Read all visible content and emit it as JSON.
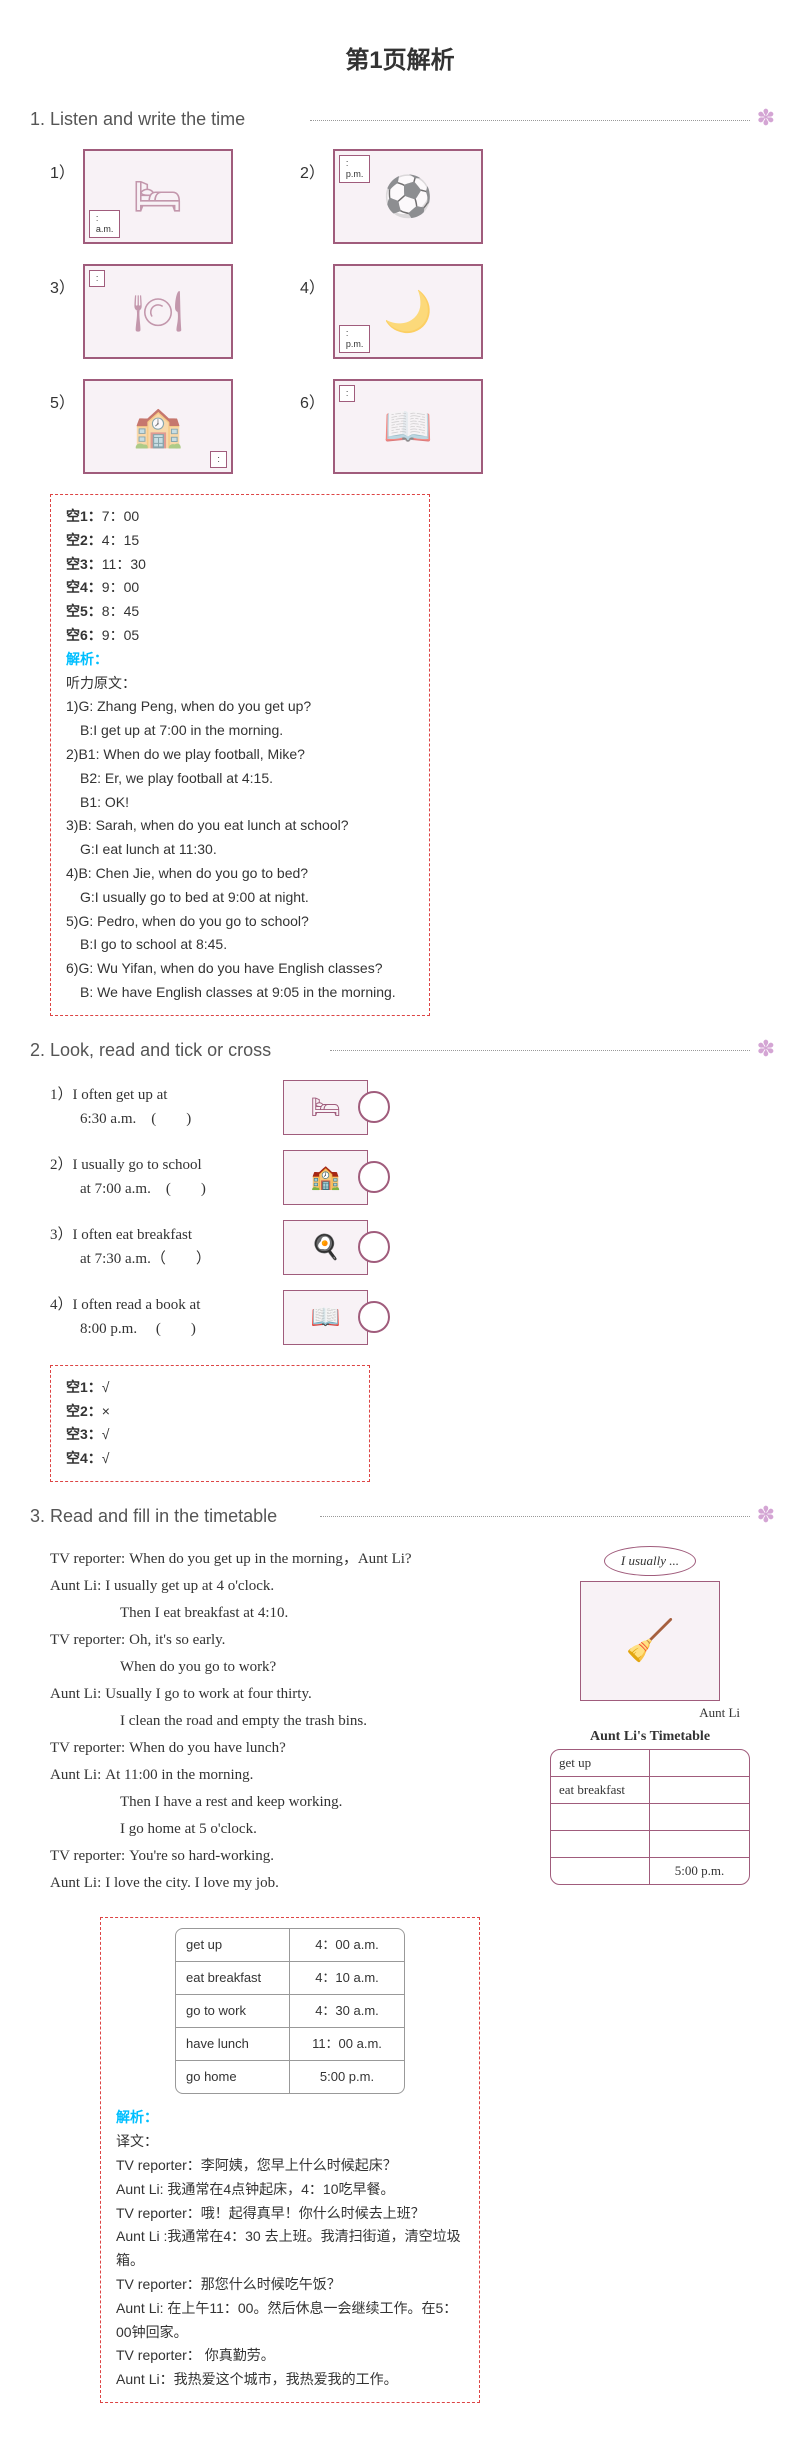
{
  "page_title": "第1页解析",
  "section1": {
    "title": "1.  Listen and write the time",
    "items": [
      {
        "num": "1）",
        "tag_pos": "bl",
        "tag": ":\na.m.",
        "glyph": "🛏"
      },
      {
        "num": "2）",
        "tag_pos": "tl",
        "tag": ":\np.m.",
        "glyph": "⚽"
      },
      {
        "num": "3）",
        "tag_pos": "tl",
        "tag": ":",
        "glyph": "🍽"
      },
      {
        "num": "4）",
        "tag_pos": "bl",
        "tag": ":\np.m.",
        "glyph": "🌙"
      },
      {
        "num": "5）",
        "tag_pos": "br",
        "tag": ":",
        "glyph": "🏫"
      },
      {
        "num": "6）",
        "tag_pos": "tl",
        "tag": ":",
        "glyph": "📖"
      }
    ],
    "answers": [
      {
        "k": "空1：",
        "v": "7：00"
      },
      {
        "k": "空2：",
        "v": "4：15"
      },
      {
        "k": "空3：",
        "v": "11：30"
      },
      {
        "k": "空4：",
        "v": "9：00"
      },
      {
        "k": "空5：",
        "v": "8：45"
      },
      {
        "k": "空6：",
        "v": "9：05"
      }
    ],
    "analysis_label": "解析：",
    "script_title": "听力原文：",
    "script": [
      "1)G: Zhang Peng, when do you get up?",
      "   B:I get up at 7:00 in the morning.",
      "2)B1: When do we play football, Mike?",
      "   B2: Er, we play football at 4:15.",
      "   B1: OK!",
      "3)B: Sarah, when do you eat lunch at school?",
      "   G:I eat lunch at 11:30.",
      "4)B: Chen Jie, when do you go to bed?",
      "   G:I usually go to bed at 9:00 at night.",
      "5)G: Pedro, when do you go to school?",
      "   B:I go to school at 8:45.",
      "6)G: Wu Yifan, when do you have English classes?",
      "   B: We have English classes at 9:05 in the morning."
    ]
  },
  "section2": {
    "title": "2.  Look, read and tick or cross",
    "items": [
      {
        "num": "1）",
        "l1": "I often get up at",
        "l2": "6:30 a.m.　(　　)",
        "glyph": "🛏"
      },
      {
        "num": "2）",
        "l1": "I usually go to school",
        "l2": "at 7:00 a.m.　(　　)",
        "glyph": "🏫"
      },
      {
        "num": "3）",
        "l1": "I often eat breakfast",
        "l2": "at 7:30 a.m.（　　）",
        "glyph": "🍳"
      },
      {
        "num": "4）",
        "l1": "I often read a book at",
        "l2": "8:00 p.m.　 (　　)",
        "glyph": "📖"
      }
    ],
    "answers": [
      {
        "k": "空1：",
        "v": "√"
      },
      {
        "k": "空2：",
        "v": "×"
      },
      {
        "k": "空3：",
        "v": "√"
      },
      {
        "k": "空4：",
        "v": "√"
      }
    ]
  },
  "section3": {
    "title": "3.  Read and fill in the timetable",
    "dialogue": [
      {
        "s": "TV reporter:",
        "t": "When do you get up in the morning，Aunt Li?"
      },
      {
        "s": "Aunt Li:",
        "t": "I usually get up at 4 o'clock."
      },
      {
        "s": "",
        "t": "Then I eat breakfast at 4:10."
      },
      {
        "s": "TV reporter:",
        "t": "Oh, it's so early."
      },
      {
        "s": "",
        "t": "When do you go to work?"
      },
      {
        "s": "Aunt Li:",
        "t": "Usually I go to work at four thirty."
      },
      {
        "s": "",
        "t": "I clean the road and empty the trash bins."
      },
      {
        "s": "TV reporter:",
        "t": "When do you have lunch?"
      },
      {
        "s": "Aunt Li:",
        "t": "At 11:00 in the morning."
      },
      {
        "s": "",
        "t": "Then I have a rest and keep working."
      },
      {
        "s": "",
        "t": "I go home at 5 o'clock."
      },
      {
        "s": "TV reporter:",
        "t": "You're so hard-working."
      },
      {
        "s": "Aunt Li:",
        "t": "I love the city. I love my job."
      }
    ],
    "bubble": "I usually ...",
    "aunt_label": "Aunt  Li",
    "timetable_title": "Aunt  Li's   Timetable",
    "timetable_blank": [
      {
        "c1": "get  up",
        "c2": ""
      },
      {
        "c1": "eat  breakfast",
        "c2": ""
      },
      {
        "c1": "",
        "c2": ""
      },
      {
        "c1": "",
        "c2": ""
      },
      {
        "c1": "",
        "c2": "5:00  p.m."
      }
    ],
    "ans_timetable": [
      {
        "c1": "get  up",
        "c2": "4：00 a.m."
      },
      {
        "c1": "eat  breakfast",
        "c2": "4：10 a.m."
      },
      {
        "c1": "go to work",
        "c2": "4：30 a.m."
      },
      {
        "c1": "have lunch",
        "c2": "11：00 a.m."
      },
      {
        "c1": "go home",
        "c2": "5:00  p.m."
      }
    ],
    "analysis_label": "解析：",
    "trans_title": "译文：",
    "translation": [
      "TV reporter：李阿姨，您早上什么时候起床？",
      "Aunt Li:  我通常在4点钟起床，4：10吃早餐。",
      "TV reporter：哦！起得真早！你什么时候去上班？",
      "Aunt Li :我通常在4：30 去上班。我清扫街道，清空垃圾箱。",
      "TV reporter：那您什么时候吃午饭？",
      "Aunt Li:  在上午11：00。然后休息一会继续工作。在5：00钟回家。",
      "TV reporter：  你真勤劳。",
      "Aunt Li：我热爱这个城市，我热爱我的工作。"
    ]
  }
}
